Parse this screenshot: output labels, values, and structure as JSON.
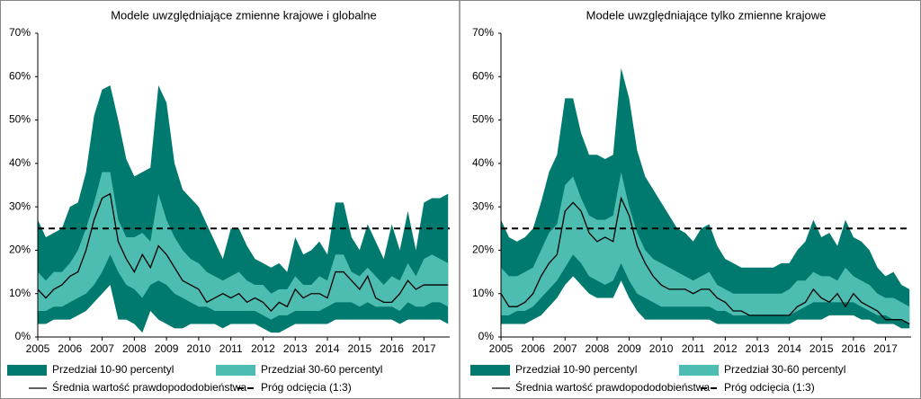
{
  "chart_data": [
    {
      "type": "band-line",
      "title": "Modele uwzględniające zmienne krajowe i globalne",
      "x": [
        2005,
        2005.25,
        2005.5,
        2005.75,
        2006,
        2006.25,
        2006.5,
        2006.75,
        2007,
        2007.25,
        2007.5,
        2007.75,
        2008,
        2008.25,
        2008.5,
        2008.75,
        2009,
        2009.25,
        2009.5,
        2009.75,
        2010,
        2010.25,
        2010.5,
        2010.75,
        2011,
        2011.25,
        2011.5,
        2011.75,
        2012,
        2012.25,
        2012.5,
        2012.75,
        2013,
        2013.25,
        2013.5,
        2013.75,
        2014,
        2014.25,
        2014.5,
        2014.75,
        2015,
        2015.25,
        2015.5,
        2015.75,
        2016,
        2016.25,
        2016.5,
        2016.75,
        2017,
        2017.25,
        2017.5,
        2017.75
      ],
      "xlim": [
        2005,
        2017.8
      ],
      "xticks": [
        2005,
        2006,
        2007,
        2008,
        2009,
        2010,
        2011,
        2012,
        2013,
        2014,
        2015,
        2016,
        2017
      ],
      "ylim": [
        0,
        70
      ],
      "yticks": [
        {
          "value": 0,
          "label": "0%"
        },
        {
          "value": 10,
          "label": "10%"
        },
        {
          "value": 20,
          "label": "20%"
        },
        {
          "value": 30,
          "label": "30%"
        },
        {
          "value": 40,
          "label": "40%"
        },
        {
          "value": 50,
          "label": "50%"
        },
        {
          "value": 60,
          "label": "60%"
        },
        {
          "value": 70,
          "label": "70%"
        }
      ],
      "series": [
        {
          "name": "Przedział 10-90 percentyl",
          "color": "#007a6e",
          "upper": [
            27,
            23,
            24,
            25,
            30,
            31,
            38,
            51,
            57,
            58,
            50,
            41,
            37,
            38,
            39,
            58,
            54,
            40,
            34,
            32,
            30,
            26,
            22,
            18,
            25,
            25,
            21,
            18,
            17,
            16,
            17,
            15,
            23,
            19,
            20,
            22,
            19,
            31,
            31,
            23,
            20,
            26,
            22,
            18,
            26,
            20,
            29,
            20,
            31,
            32,
            32,
            33
          ],
          "lower": [
            3,
            3,
            4,
            4,
            4,
            5,
            6,
            8,
            10,
            12,
            4,
            4,
            3,
            1,
            6,
            4,
            3,
            2,
            2,
            3,
            3,
            3,
            3,
            2,
            3,
            3,
            3,
            3,
            2,
            1,
            1,
            2,
            3,
            3,
            3,
            3,
            3,
            4,
            4,
            4,
            4,
            4,
            4,
            4,
            4,
            3,
            4,
            4,
            4,
            4,
            4,
            3
          ]
        },
        {
          "name": "Przedział 30-60 percentyl",
          "color": "#4dbdb1",
          "upper": [
            15,
            13,
            15,
            15,
            17,
            20,
            25,
            31,
            38,
            38,
            27,
            23,
            23,
            24,
            22,
            33,
            27,
            23,
            20,
            18,
            17,
            15,
            14,
            13,
            14,
            15,
            13,
            12,
            12,
            10,
            11,
            11,
            14,
            12,
            12,
            14,
            13,
            19,
            19,
            15,
            14,
            16,
            14,
            12,
            14,
            13,
            17,
            14,
            18,
            19,
            18,
            17
          ],
          "lower": [
            6,
            6,
            7,
            7,
            8,
            9,
            10,
            12,
            15,
            19,
            15,
            12,
            11,
            9,
            12,
            13,
            12,
            10,
            9,
            8,
            7,
            7,
            6,
            6,
            6,
            6,
            6,
            6,
            5,
            4,
            5,
            5,
            6,
            6,
            6,
            6,
            7,
            8,
            8,
            8,
            7,
            8,
            7,
            7,
            7,
            6,
            8,
            7,
            7,
            8,
            8,
            7
          ]
        },
        {
          "name": "Średnia wartość prawdopododobieństwa",
          "color": "#000000",
          "values": [
            11,
            9,
            11,
            12,
            14,
            15,
            20,
            27,
            32,
            33,
            22,
            18,
            15,
            19,
            16,
            21,
            19,
            16,
            13,
            12,
            11,
            8,
            9,
            10,
            9,
            10,
            8,
            9,
            8,
            6,
            8,
            7,
            11,
            9,
            10,
            10,
            9,
            15,
            15,
            13,
            11,
            14,
            9,
            8,
            8,
            10,
            13,
            11,
            12,
            12,
            12,
            12
          ]
        },
        {
          "name": "Próg odcięcia (1:3)",
          "color": "#000000",
          "value": 25
        }
      ]
    },
    {
      "type": "band-line",
      "title": "Modele uwzględniające tylko zmienne krajowe",
      "x": [
        2005,
        2005.25,
        2005.5,
        2005.75,
        2006,
        2006.25,
        2006.5,
        2006.75,
        2007,
        2007.25,
        2007.5,
        2007.75,
        2008,
        2008.25,
        2008.5,
        2008.75,
        2009,
        2009.25,
        2009.5,
        2009.75,
        2010,
        2010.25,
        2010.5,
        2010.75,
        2011,
        2011.25,
        2011.5,
        2011.75,
        2012,
        2012.25,
        2012.5,
        2012.75,
        2013,
        2013.25,
        2013.5,
        2013.75,
        2014,
        2014.25,
        2014.5,
        2014.75,
        2015,
        2015.25,
        2015.5,
        2015.75,
        2016,
        2016.25,
        2016.5,
        2016.75,
        2017,
        2017.25,
        2017.5,
        2017.75
      ],
      "xlim": [
        2005,
        2017.8
      ],
      "xticks": [
        2005,
        2006,
        2007,
        2008,
        2009,
        2010,
        2011,
        2012,
        2013,
        2014,
        2015,
        2016,
        2017
      ],
      "ylim": [
        0,
        70
      ],
      "yticks": [
        {
          "value": 0,
          "label": "0%"
        },
        {
          "value": 10,
          "label": "10%"
        },
        {
          "value": 20,
          "label": "20%"
        },
        {
          "value": 30,
          "label": "30%"
        },
        {
          "value": 40,
          "label": "40%"
        },
        {
          "value": 50,
          "label": "50%"
        },
        {
          "value": 60,
          "label": "60%"
        },
        {
          "value": 70,
          "label": "70%"
        }
      ],
      "series": [
        {
          "name": "Przedział 10-90 percentyl",
          "color": "#007a6e",
          "upper": [
            27,
            23,
            22,
            23,
            25,
            31,
            38,
            42,
            55,
            55,
            47,
            42,
            42,
            41,
            42,
            62,
            55,
            43,
            37,
            34,
            31,
            28,
            25,
            24,
            22,
            25,
            26,
            21,
            18,
            17,
            16,
            16,
            16,
            16,
            16,
            17,
            17,
            20,
            22,
            27,
            23,
            24,
            21,
            27,
            23,
            22,
            20,
            16,
            14,
            15,
            12,
            11
          ],
          "lower": [
            3,
            3,
            3,
            3,
            4,
            5,
            7,
            9,
            12,
            14,
            12,
            10,
            9,
            9,
            9,
            13,
            9,
            6,
            4,
            4,
            4,
            4,
            4,
            4,
            4,
            4,
            4,
            3,
            3,
            3,
            3,
            3,
            3,
            3,
            3,
            3,
            3,
            4,
            4,
            4,
            4,
            5,
            5,
            5,
            5,
            4,
            4,
            3,
            3,
            3,
            2,
            2
          ]
        },
        {
          "name": "Przedział 30-60 percentyl",
          "color": "#4dbdb1",
          "upper": [
            16,
            14,
            14,
            15,
            16,
            20,
            24,
            26,
            35,
            37,
            32,
            28,
            27,
            27,
            28,
            38,
            30,
            24,
            20,
            18,
            17,
            16,
            15,
            14,
            13,
            14,
            15,
            12,
            11,
            10,
            10,
            10,
            10,
            10,
            10,
            10,
            11,
            13,
            13,
            15,
            14,
            14,
            13,
            16,
            14,
            13,
            12,
            10,
            9,
            9,
            8,
            7
          ],
          "lower": [
            5,
            5,
            6,
            6,
            7,
            9,
            11,
            13,
            16,
            19,
            17,
            14,
            13,
            12,
            13,
            17,
            13,
            10,
            9,
            8,
            7,
            7,
            7,
            7,
            7,
            7,
            7,
            6,
            6,
            5,
            5,
            5,
            5,
            5,
            5,
            5,
            5,
            6,
            7,
            8,
            8,
            8,
            8,
            8,
            8,
            7,
            6,
            5,
            5,
            4,
            4,
            3
          ]
        },
        {
          "name": "Średnia wartość prawdopododobieństwa",
          "color": "#000000",
          "values": [
            10,
            7,
            7,
            8,
            10,
            14,
            17,
            19,
            29,
            31,
            29,
            24,
            22,
            23,
            22,
            32,
            28,
            21,
            17,
            14,
            12,
            11,
            11,
            11,
            10,
            11,
            11,
            9,
            8,
            6,
            6,
            5,
            5,
            5,
            5,
            5,
            5,
            7,
            8,
            11,
            9,
            8,
            10,
            7,
            10,
            8,
            7,
            6,
            4,
            4,
            4,
            3
          ]
        },
        {
          "name": "Próg odcięcia (1:3)",
          "color": "#000000",
          "value": 25
        }
      ]
    }
  ]
}
